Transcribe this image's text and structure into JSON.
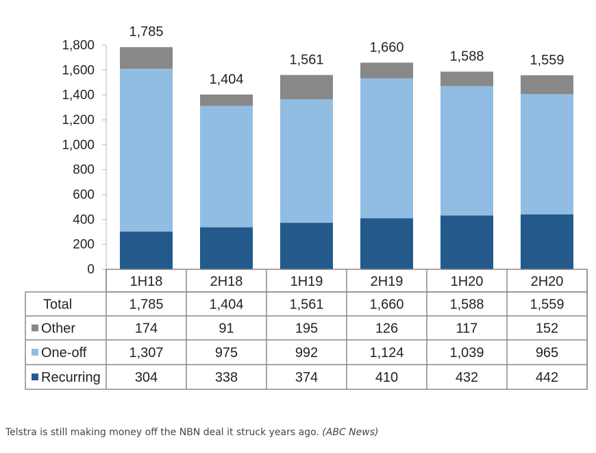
{
  "chart_data": {
    "type": "bar",
    "stacked": true,
    "categories": [
      "1H18",
      "2H18",
      "1H19",
      "2H19",
      "1H20",
      "2H20"
    ],
    "series": [
      {
        "name": "Recurring",
        "values": [
          304,
          338,
          374,
          410,
          432,
          442
        ],
        "color": "#245A8B"
      },
      {
        "name": "One-off",
        "values": [
          1307,
          975,
          992,
          1124,
          1039,
          965
        ],
        "color": "#92BDE3"
      },
      {
        "name": "Other",
        "values": [
          174,
          91,
          195,
          126,
          117,
          152
        ],
        "color": "#888888"
      }
    ],
    "totals": [
      1785,
      1404,
      1561,
      1660,
      1588,
      1559
    ],
    "total_labels": [
      "1,785",
      "1,404",
      "1,561",
      "1,660",
      "1,588",
      "1,559"
    ],
    "ylim": [
      0,
      1800
    ],
    "yticks": [
      "0",
      "200",
      "400",
      "600",
      "800",
      "1,000",
      "1,200",
      "1,400",
      "1,600",
      "1,800"
    ],
    "grid": false,
    "table": {
      "row_labels": [
        "Total",
        "Other",
        "One-off",
        "Recurring"
      ],
      "rows": [
        [
          "1,785",
          "1,404",
          "1,561",
          "1,660",
          "1,588",
          "1,559"
        ],
        [
          "174",
          "91",
          "195",
          "126",
          "117",
          "152"
        ],
        [
          "1,307",
          "975",
          "992",
          "1,124",
          "1,039",
          "965"
        ],
        [
          "304",
          "338",
          "374",
          "410",
          "432",
          "442"
        ]
      ]
    }
  },
  "caption": {
    "text": "Telstra is still making money off the NBN deal it struck years ago.",
    "source": "(ABC News)"
  }
}
